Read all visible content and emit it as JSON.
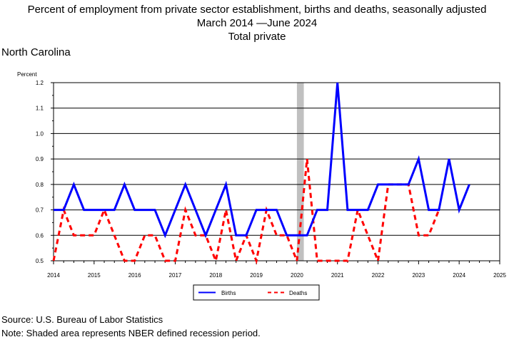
{
  "header": {
    "title_line1": "Percent of employment from private sector establishment, births and deaths, seasonally adjusted",
    "title_line2": "March 2014 —June 2024",
    "title_line3": "Total private",
    "region": "North Carolina"
  },
  "footer": {
    "source": "Source: U.S. Bureau of Labor Statistics",
    "note": "Note: Shaded area represents NBER defined recession period."
  },
  "chart_data": {
    "type": "line",
    "ylabel": "Percent",
    "ylim": [
      0.5,
      1.2
    ],
    "xlim": [
      2014.0,
      2025.0
    ],
    "y_ticks": [
      "0.5",
      "0.6",
      "0.7",
      "0.8",
      "0.9",
      "1.0",
      "1.1",
      "1.2"
    ],
    "x_ticks": [
      "2014",
      "2015",
      "2016",
      "2017",
      "2018",
      "2019",
      "2020",
      "2021",
      "2022",
      "2023",
      "2024",
      "2025"
    ],
    "grid": "horizontal",
    "legend_position": "bottom-center",
    "recession_band": [
      2020.0,
      2020.17
    ],
    "recession_color": "#c0c0c0",
    "series": [
      {
        "name": "Births",
        "color": "#0000ff",
        "dash": "solid",
        "x": [
          2014.0,
          2014.25,
          2014.5,
          2014.75,
          2015.0,
          2015.25,
          2015.5,
          2015.75,
          2016.0,
          2016.25,
          2016.5,
          2016.75,
          2017.0,
          2017.25,
          2017.5,
          2017.75,
          2018.0,
          2018.25,
          2018.5,
          2018.75,
          2019.0,
          2019.25,
          2019.5,
          2019.75,
          2020.0,
          2020.25,
          2020.5,
          2020.75,
          2021.0,
          2021.25,
          2021.5,
          2021.75,
          2022.0,
          2022.25,
          2022.5,
          2022.75,
          2023.0,
          2023.25,
          2023.5,
          2023.75,
          2024.0,
          2024.25
        ],
        "values": [
          0.7,
          0.7,
          0.8,
          0.7,
          0.7,
          0.7,
          0.7,
          0.8,
          0.7,
          0.7,
          0.7,
          0.6,
          0.7,
          0.8,
          0.7,
          0.6,
          0.7,
          0.8,
          0.6,
          0.6,
          0.7,
          0.7,
          0.7,
          0.6,
          0.6,
          0.6,
          0.7,
          0.7,
          1.2,
          0.7,
          0.7,
          0.7,
          0.8,
          0.8,
          0.8,
          0.8,
          0.9,
          0.7,
          0.7,
          0.9,
          0.7,
          0.8
        ]
      },
      {
        "name": "Deaths",
        "color": "#ff0000",
        "dash": "dashed",
        "x": [
          2014.0,
          2014.25,
          2014.5,
          2014.75,
          2015.0,
          2015.25,
          2015.5,
          2015.75,
          2016.0,
          2016.25,
          2016.5,
          2016.75,
          2017.0,
          2017.25,
          2017.5,
          2017.75,
          2018.0,
          2018.25,
          2018.5,
          2018.75,
          2019.0,
          2019.25,
          2019.5,
          2019.75,
          2020.0,
          2020.25,
          2020.5,
          2020.75,
          2021.0,
          2021.25,
          2021.5,
          2021.75,
          2022.0,
          2022.25,
          2022.5,
          2022.75,
          2023.0,
          2023.25,
          2023.5
        ],
        "values": [
          0.5,
          0.7,
          0.6,
          0.6,
          0.6,
          0.7,
          0.6,
          0.5,
          0.5,
          0.6,
          0.6,
          0.5,
          0.5,
          0.7,
          0.6,
          0.6,
          0.5,
          0.7,
          0.5,
          0.6,
          0.5,
          0.7,
          0.6,
          0.6,
          0.5,
          0.9,
          0.5,
          0.5,
          0.5,
          0.5,
          0.7,
          0.6,
          0.5,
          0.8,
          0.8,
          0.8,
          0.6,
          0.6,
          0.7
        ]
      }
    ]
  }
}
